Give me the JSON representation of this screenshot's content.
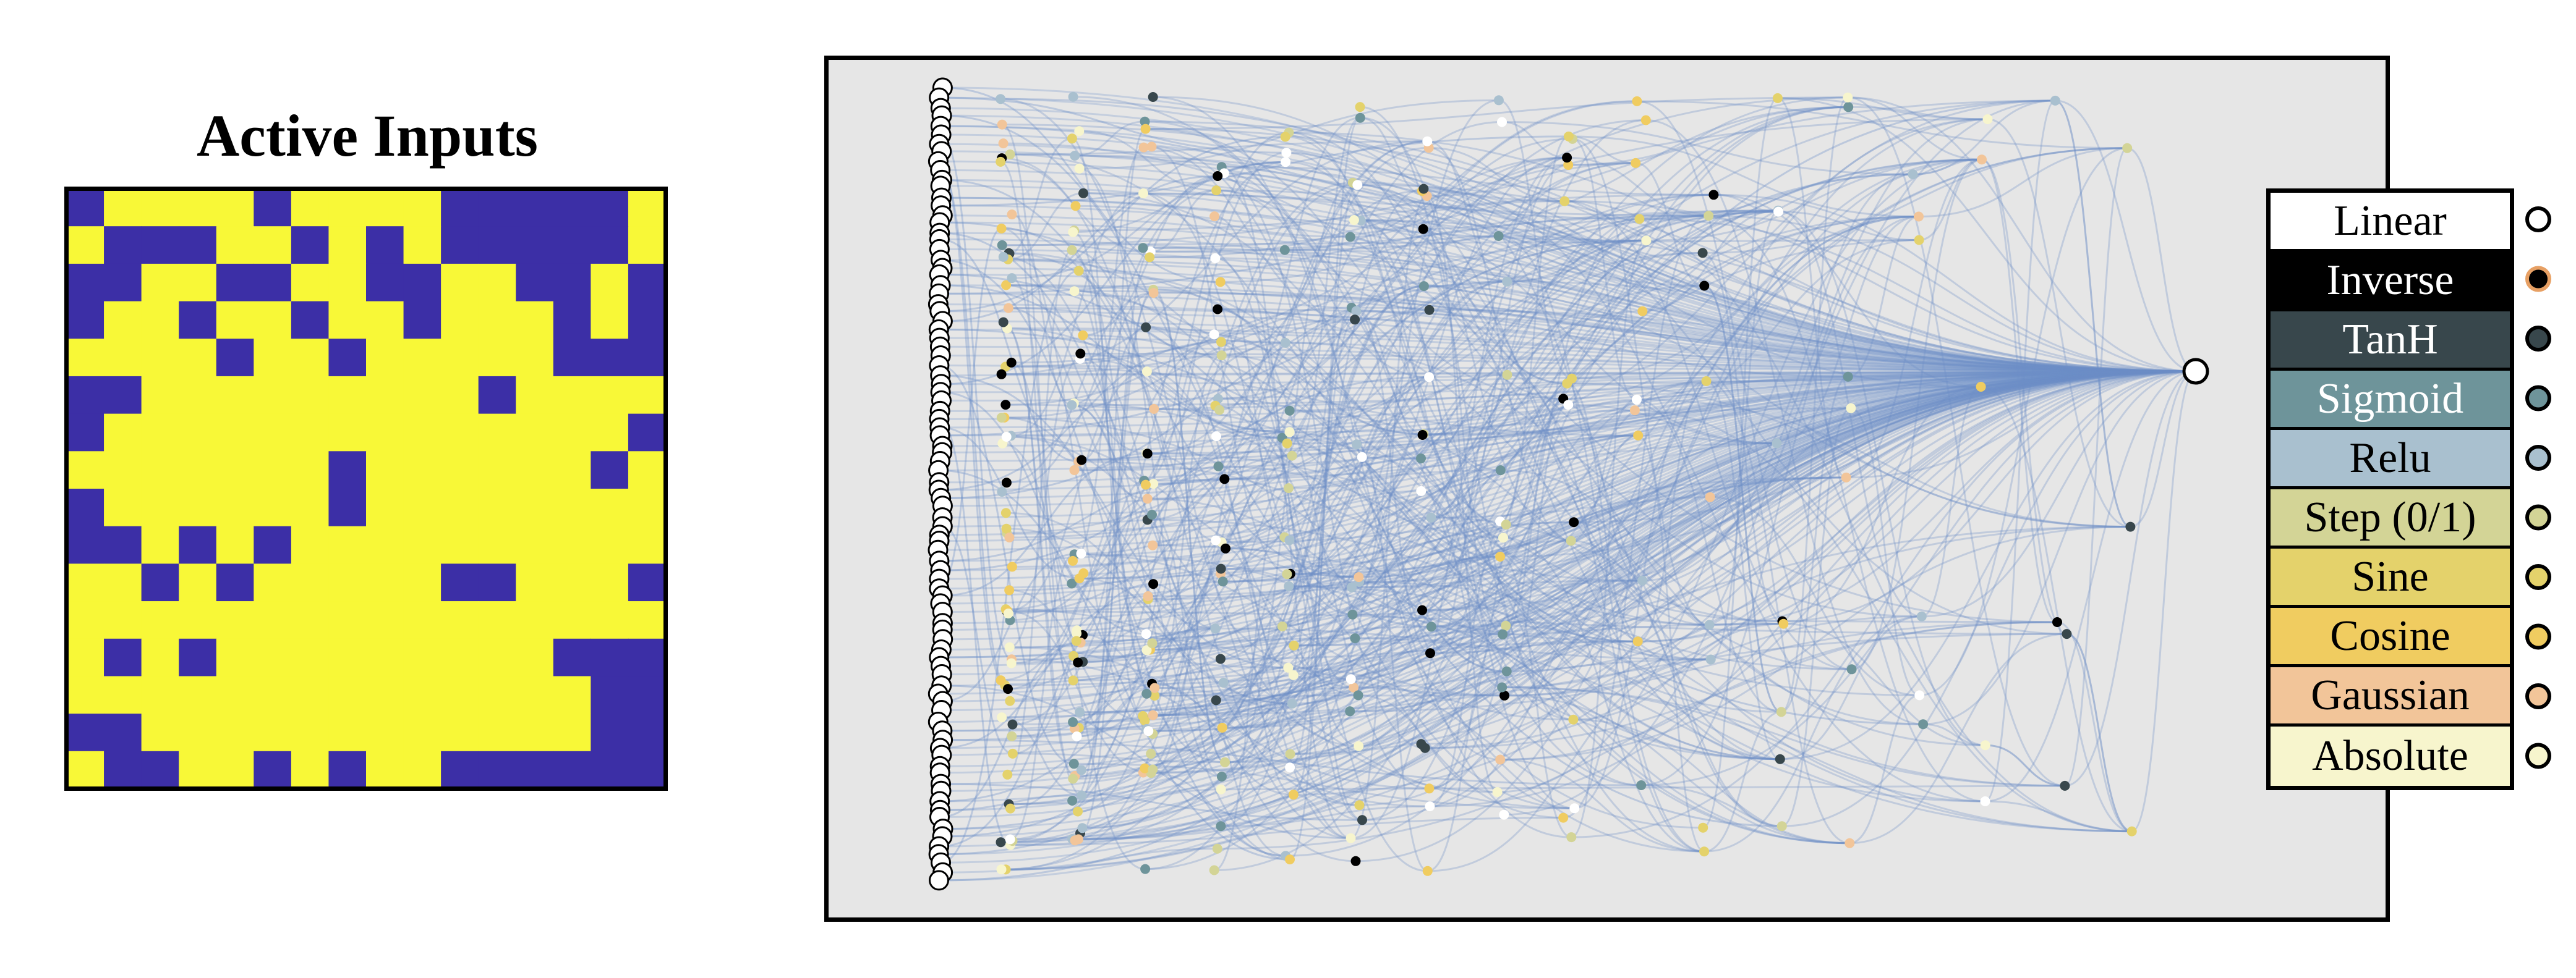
{
  "grid_panel": {
    "title": "Active Inputs",
    "rows": 16,
    "cols": 16,
    "active_color": "#f8f837",
    "inactive_color": "#3c2fa6",
    "cells": [
      "0111101111000001",
      "1000110101000001",
      "0011001100110010",
      "0110110110111010",
      "1111011011111000",
      "0011111111101111",
      "0111111111111110",
      "1111111011111101",
      "0111111011111111",
      "0010101111111111",
      "1101011111001110",
      "1111111111111111",
      "1010111111111000",
      "1111111111111100",
      "0011111111111100",
      "1001101011000000"
    ]
  },
  "network": {
    "background": "#e6e6e6",
    "edge_color": "#6d90c8",
    "output_node_fill": "#ffffff"
  },
  "legend": {
    "items": [
      {
        "label": "Linear",
        "bg": "#ffffff",
        "text_color": "#000000",
        "marker_fill": "#ffffff",
        "marker_stroke": "#000000"
      },
      {
        "label": "Inverse",
        "bg": "#000000",
        "text_color": "#ffffff",
        "marker_fill": "#000000",
        "marker_stroke": "#e7a064"
      },
      {
        "label": "TanH",
        "bg": "#38474c",
        "text_color": "#ffffff",
        "marker_fill": "#38474c",
        "marker_stroke": "#000000"
      },
      {
        "label": "Sigmoid",
        "bg": "#6e949a",
        "text_color": "#ffffff",
        "marker_fill": "#6e949a",
        "marker_stroke": "#000000"
      },
      {
        "label": "Relu",
        "bg": "#a9c0cf",
        "text_color": "#000000",
        "marker_fill": "#a9c0cf",
        "marker_stroke": "#000000"
      },
      {
        "label": "Step (0/1)",
        "bg": "#d3d496",
        "text_color": "#000000",
        "marker_fill": "#d3d496",
        "marker_stroke": "#000000"
      },
      {
        "label": "Sine",
        "bg": "#e4d26b",
        "text_color": "#000000",
        "marker_fill": "#e4d26b",
        "marker_stroke": "#000000"
      },
      {
        "label": "Cosine",
        "bg": "#f0cc60",
        "text_color": "#000000",
        "marker_fill": "#f0cc60",
        "marker_stroke": "#000000"
      },
      {
        "label": "Gaussian",
        "bg": "#f2c599",
        "text_color": "#000000",
        "marker_fill": "#f2c599",
        "marker_stroke": "#000000"
      },
      {
        "label": "Absolute",
        "bg": "#f7f5cd",
        "text_color": "#000000",
        "marker_fill": "#f7f5cd",
        "marker_stroke": "#000000"
      }
    ]
  }
}
